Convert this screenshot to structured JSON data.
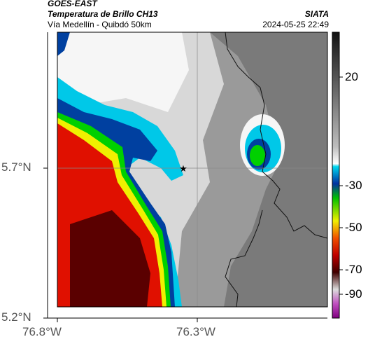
{
  "header": {
    "satellite": "GOES-EAST",
    "product": "Temperatura de Brillo CH13",
    "route": "Vía Medellín - Quibdó 50km",
    "org": "SIATA",
    "datetime": "2024-05-25 22:49"
  },
  "axes": {
    "lat_ticks": [
      "5.7°N",
      "5.2°N"
    ],
    "lon_ticks": [
      "76.8°W",
      "76.3°W"
    ]
  },
  "colorbar": {
    "ticks": [
      "20",
      "-30",
      "-50",
      "-70",
      "-90"
    ],
    "colors": {
      "warm": "#2a2a2a",
      "gray": "#9a9a9a",
      "white": "#f6f6f6",
      "cyan": "#00c8e8",
      "blue": "#0040a0",
      "green": "#00d000",
      "yellow": "#f0f000",
      "red": "#e01000",
      "darkred": "#5a0000",
      "magenta": "#b040b0"
    }
  },
  "marker": {
    "symbol": "★"
  }
}
